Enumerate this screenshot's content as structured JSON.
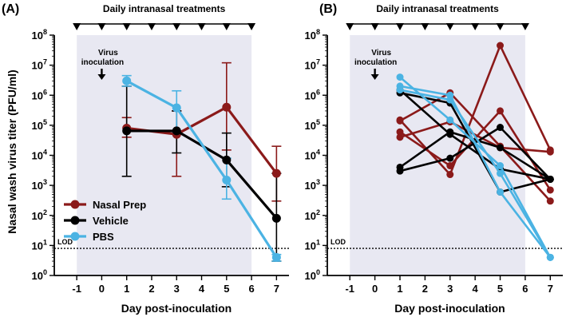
{
  "figure": {
    "ylabel": "Nasal wash virus titer (PFU/ml)",
    "xlabel": "Day post-inoculation",
    "lod_label": "LOD",
    "lod_value": 8,
    "treatment_label": "Daily intranasal treatments",
    "treatment_days": [
      -1,
      0,
      1,
      2,
      3,
      4,
      5,
      6
    ],
    "inoculation_label_line1": "Virus",
    "inoculation_label_line2": "inoculation",
    "inoculation_day": 0,
    "shaded_range": [
      -1,
      6
    ],
    "x_ticks": [
      -1,
      0,
      1,
      2,
      3,
      4,
      5,
      6,
      7
    ],
    "x_tick_labels": [
      "-1",
      "0",
      "1",
      "2",
      "3",
      "4",
      "5",
      "6",
      "7"
    ],
    "y_exponents": [
      0,
      1,
      2,
      3,
      4,
      5,
      6,
      7,
      8
    ],
    "y_base": "10",
    "colors": {
      "nasal_prep": "#8b1a1a",
      "vehicle": "#000000",
      "pbs": "#4bb3e3",
      "shade": "#e8e8f2"
    }
  },
  "chart_data": [
    {
      "panel_label": "(A)",
      "type": "line",
      "yscale": "log",
      "xlim": [
        -1.9,
        7.5
      ],
      "ylim": [
        1,
        100000000
      ],
      "legend": [
        "Nasal Prep",
        "Vehicle",
        "PBS"
      ],
      "series": [
        {
          "name": "Nasal Prep",
          "key": "nasal_prep",
          "x": [
            1,
            3,
            5,
            7
          ],
          "y": [
            80000,
            50000,
            400000,
            2500
          ],
          "err_low": [
            40000,
            2000,
            15000,
            300
          ],
          "err_high": [
            180000,
            300000,
            12000000,
            20000
          ]
        },
        {
          "name": "Vehicle",
          "key": "vehicle",
          "x": [
            1,
            3,
            5,
            7
          ],
          "y": [
            65000,
            65000,
            7000,
            80
          ],
          "err_low": [
            2000,
            12000,
            900,
            3
          ],
          "err_high": [
            2000000,
            300000,
            55000,
            2500
          ]
        },
        {
          "name": "PBS",
          "key": "pbs",
          "x": [
            1,
            3,
            5,
            7
          ],
          "y": [
            3000000,
            380000,
            1500,
            4
          ],
          "err_low": [
            2000000,
            60000,
            350,
            3
          ],
          "err_high": [
            4500000,
            1400000,
            8000,
            5
          ]
        }
      ]
    },
    {
      "panel_label": "(B)",
      "type": "line",
      "yscale": "log",
      "xlim": [
        -1.9,
        7.5
      ],
      "ylim": [
        1,
        100000000
      ],
      "series": [
        {
          "name": "Nasal Prep",
          "key": "nasal_prep",
          "x": [
            1,
            3,
            5,
            7
          ],
          "y": [
            150000,
            2300,
            45000000,
            15000
          ]
        },
        {
          "name": "Nasal Prep",
          "key": "nasal_prep",
          "x": [
            1,
            3,
            5,
            7
          ],
          "y": [
            60000,
            4500,
            300000,
            700
          ]
        },
        {
          "name": "Nasal Prep",
          "key": "nasal_prep",
          "x": [
            1,
            3,
            5,
            7
          ],
          "y": [
            40000,
            130000,
            18000,
            13000
          ]
        },
        {
          "name": "Nasal Prep",
          "key": "nasal_prep",
          "x": [
            1,
            3,
            5,
            7
          ],
          "y": [
            140000,
            1200000,
            20000,
            300
          ]
        },
        {
          "name": "Vehicle",
          "key": "vehicle",
          "x": [
            1,
            3,
            5,
            7
          ],
          "y": [
            3000,
            8000,
            85000,
            1600
          ]
        },
        {
          "name": "Vehicle",
          "key": "vehicle",
          "x": [
            1,
            3,
            5,
            7
          ],
          "y": [
            4000,
            60000,
            18000,
            1600
          ]
        },
        {
          "name": "Vehicle",
          "key": "vehicle",
          "x": [
            1,
            3,
            5,
            7
          ],
          "y": [
            1500000,
            50000,
            3500,
            1600
          ]
        },
        {
          "name": "Vehicle",
          "key": "vehicle",
          "x": [
            1,
            3,
            5,
            7
          ],
          "y": [
            1200000,
            550000,
            600,
            1600
          ]
        },
        {
          "name": "PBS",
          "key": "pbs",
          "x": [
            1,
            3,
            5,
            7
          ],
          "y": [
            4000000,
            150000,
            4500,
            4
          ]
        },
        {
          "name": "PBS",
          "key": "pbs",
          "x": [
            1,
            3,
            5,
            7
          ],
          "y": [
            2000000,
            1000000,
            600,
            4
          ]
        },
        {
          "name": "PBS",
          "key": "pbs",
          "x": [
            1,
            3,
            5,
            7
          ],
          "y": [
            1500000,
            700000,
            2500,
            4
          ]
        }
      ]
    }
  ]
}
